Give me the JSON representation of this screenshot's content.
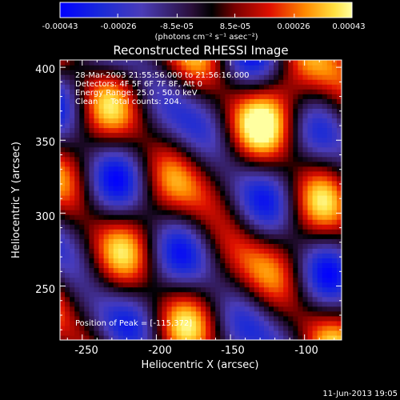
{
  "chart_data": {
    "type": "heatmap",
    "title": "Reconstructed RHESSI Image",
    "xlabel": "Heliocentric X (arcsec)",
    "ylabel": "Heliocentric Y (arcsec)",
    "x_ticks": [
      "-250",
      "-200",
      "-150",
      "-100"
    ],
    "y_ticks": [
      "250",
      "300",
      "350",
      "400"
    ],
    "xlim": [
      -265,
      -75
    ],
    "ylim": [
      213,
      405
    ],
    "colorbar": {
      "ticks": [
        "-0.00043",
        "-0.00026",
        "-8.5e-05",
        "8.5e-05",
        "0.00026",
        "0.00043"
      ],
      "unit_label": "(photons cm⁻² s⁻¹ asec⁻²)",
      "range": [
        -0.00043,
        0.00043
      ]
    },
    "annotations": {
      "time_range": "28-Mar-2003 21:55:56.000 to 21:56:16.000",
      "detectors": "Detectors: 4F 5F 6F 7F 8F, Att 0",
      "energy_range": "Energy Range: 25.0 - 50.0 keV",
      "method": "Clean     Total counts: 204.",
      "peak": "Position of Peak = [-115,372]"
    },
    "peak_position": [
      -115,
      372
    ],
    "colors": {
      "background": "#000000",
      "foreground": "#ffffff"
    }
  },
  "footer": {
    "timestamp": "11-Jun-2013 19:05"
  }
}
